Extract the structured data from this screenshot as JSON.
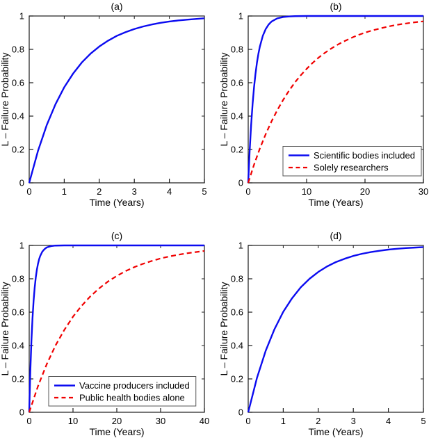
{
  "figure": {
    "background": "#ffffff",
    "axis_color": "#1c1c1c",
    "blue": "#0b0bf0",
    "red": "#f00000"
  },
  "chart_data": [
    {
      "type": "line",
      "panel_id": "a",
      "title": "(a)",
      "xlabel": "Time (Years)",
      "ylabel": "L – Failure Probability",
      "xlim": [
        0,
        5
      ],
      "ylim": [
        0,
        1
      ],
      "xticks": [
        0,
        1,
        2,
        3,
        4,
        5
      ],
      "yticks": [
        0,
        0.2,
        0.4,
        0.6,
        0.8,
        1
      ],
      "grid": false,
      "legend": null,
      "series": [
        {
          "name": "",
          "color": "#0b0bf0",
          "style": "solid",
          "x": [
            0,
            0.25,
            0.5,
            0.75,
            1,
            1.25,
            1.5,
            1.75,
            2,
            2.25,
            2.5,
            2.75,
            3,
            3.25,
            3.5,
            3.75,
            4,
            4.25,
            4.5,
            4.75,
            5
          ],
          "y": [
            0,
            0.191,
            0.346,
            0.471,
            0.573,
            0.654,
            0.721,
            0.774,
            0.817,
            0.852,
            0.881,
            0.903,
            0.922,
            0.937,
            0.949,
            0.959,
            0.967,
            0.973,
            0.978,
            0.982,
            0.986
          ]
        }
      ]
    },
    {
      "type": "line",
      "panel_id": "b",
      "title": "(b)",
      "xlabel": "Time (Years)",
      "ylabel": "L – Failure Probability",
      "xlim": [
        0,
        30
      ],
      "ylim": [
        0,
        1
      ],
      "xticks": [
        0,
        10,
        20,
        30
      ],
      "yticks": [
        0,
        0.2,
        0.4,
        0.6,
        0.8,
        1
      ],
      "grid": false,
      "legend": {
        "position": "lower-right"
      },
      "series": [
        {
          "name": "Scientific bodies included",
          "color": "#0b0bf0",
          "style": "solid",
          "x": [
            0,
            0.25,
            0.5,
            0.75,
            1,
            1.25,
            1.5,
            1.75,
            2,
            2.5,
            3,
            3.5,
            4,
            5,
            6,
            7,
            8,
            10,
            15,
            20,
            30
          ],
          "y": [
            0,
            0.191,
            0.346,
            0.471,
            0.573,
            0.654,
            0.721,
            0.774,
            0.817,
            0.881,
            0.922,
            0.949,
            0.967,
            0.986,
            0.994,
            0.997,
            0.999,
            1,
            1,
            1,
            1
          ]
        },
        {
          "name": "Solely researchers",
          "color": "#f00000",
          "style": "dashed",
          "x": [
            0,
            1,
            2,
            3,
            4,
            5,
            6,
            7,
            8,
            9,
            10,
            11,
            12,
            13,
            14,
            15,
            16,
            17,
            18,
            19,
            20,
            21,
            22,
            23,
            24,
            25,
            26,
            27,
            28,
            29,
            30
          ],
          "y": [
            0,
            0.109,
            0.206,
            0.292,
            0.369,
            0.437,
            0.498,
            0.553,
            0.602,
            0.645,
            0.683,
            0.718,
            0.749,
            0.776,
            0.8,
            0.822,
            0.841,
            0.858,
            0.874,
            0.888,
            0.9,
            0.911,
            0.92,
            0.929,
            0.937,
            0.944,
            0.95,
            0.955,
            0.96,
            0.964,
            0.968
          ]
        }
      ]
    },
    {
      "type": "line",
      "panel_id": "c",
      "title": "(c)",
      "xlabel": "Time (Years)",
      "ylabel": "L – Failure Probability",
      "xlim": [
        0,
        40
      ],
      "ylim": [
        0,
        1
      ],
      "xticks": [
        0,
        10,
        20,
        30,
        40
      ],
      "yticks": [
        0,
        0.2,
        0.4,
        0.6,
        0.8,
        1
      ],
      "grid": false,
      "legend": {
        "position": "lower-left"
      },
      "series": [
        {
          "name": "Vaccine producers included",
          "color": "#0b0bf0",
          "style": "solid",
          "x": [
            0,
            0.25,
            0.5,
            0.75,
            1,
            1.25,
            1.5,
            1.75,
            2,
            2.25,
            2.5,
            3,
            3.5,
            4,
            5,
            6,
            8,
            10,
            20,
            30,
            40
          ],
          "y": [
            0,
            0.24,
            0.423,
            0.562,
            0.667,
            0.747,
            0.808,
            0.854,
            0.889,
            0.916,
            0.936,
            0.963,
            0.978,
            0.988,
            0.996,
            0.999,
            1,
            1,
            1,
            1,
            1
          ]
        },
        {
          "name": "Public health bodies alone",
          "color": "#f00000",
          "style": "dashed",
          "x": [
            0,
            2,
            4,
            6,
            8,
            10,
            12,
            14,
            16,
            18,
            20,
            22,
            24,
            26,
            28,
            30,
            32,
            34,
            36,
            38,
            40
          ],
          "y": [
            0,
            0.156,
            0.288,
            0.4,
            0.493,
            0.573,
            0.639,
            0.696,
            0.743,
            0.784,
            0.817,
            0.846,
            0.87,
            0.89,
            0.907,
            0.922,
            0.934,
            0.944,
            0.953,
            0.96,
            0.967
          ]
        }
      ]
    },
    {
      "type": "line",
      "panel_id": "d",
      "title": "(d)",
      "xlabel": "Time (Years)",
      "ylabel": "L – Failure Probability",
      "xlim": [
        0,
        5
      ],
      "ylim": [
        0,
        1
      ],
      "xticks": [
        0,
        1,
        2,
        3,
        4,
        5
      ],
      "yticks": [
        0,
        0.2,
        0.4,
        0.6,
        0.8,
        1
      ],
      "grid": false,
      "legend": null,
      "series": [
        {
          "name": "",
          "color": "#0b0bf0",
          "style": "solid",
          "x": [
            0,
            0.25,
            0.5,
            0.75,
            1,
            1.25,
            1.5,
            1.75,
            2,
            2.25,
            2.5,
            2.75,
            3,
            3.25,
            3.5,
            3.75,
            4,
            4.25,
            4.5,
            4.75,
            5
          ],
          "y": [
            0,
            0.206,
            0.369,
            0.498,
            0.602,
            0.683,
            0.749,
            0.8,
            0.841,
            0.874,
            0.9,
            0.92,
            0.937,
            0.95,
            0.96,
            0.968,
            0.975,
            0.98,
            0.984,
            0.987,
            0.99
          ]
        }
      ]
    }
  ]
}
